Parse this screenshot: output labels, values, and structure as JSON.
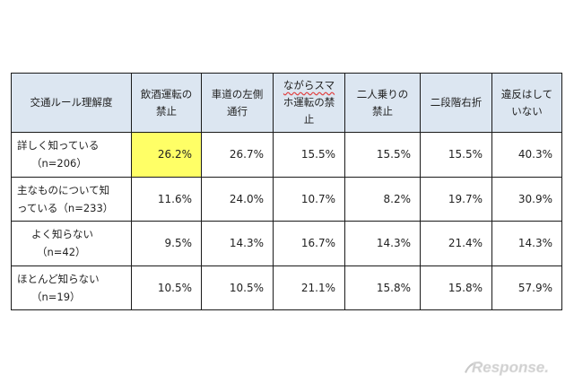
{
  "table": {
    "headers": [
      "交通ルール理解度",
      [
        "飲酒運転の",
        "禁止"
      ],
      [
        "車道の左側",
        "通行"
      ],
      [
        "ながらスマ",
        "ホ運転の禁",
        "止"
      ],
      [
        "二人乗りの",
        "禁止"
      ],
      "二段階右折",
      [
        "違反はして",
        "いない"
      ]
    ],
    "rows": [
      {
        "label": [
          "詳しく知っている",
          "（n=206）"
        ],
        "values": [
          "26.2%",
          "26.7%",
          "15.5%",
          "15.5%",
          "15.5%",
          "40.3%"
        ],
        "highlight_index": 0
      },
      {
        "label": [
          "主なものについて知",
          "っている（n=233）"
        ],
        "values": [
          "11.6%",
          "24.0%",
          "10.7%",
          "8.2%",
          "19.7%",
          "30.9%"
        ]
      },
      {
        "label": [
          "よく知らない",
          "（n=42）"
        ],
        "values": [
          "9.5%",
          "14.3%",
          "16.7%",
          "14.3%",
          "21.4%",
          "14.3%"
        ]
      },
      {
        "label": [
          "ほとんど知らない",
          "（n=19）"
        ],
        "values": [
          "10.5%",
          "10.5%",
          "21.1%",
          "15.8%",
          "15.8%",
          "57.9%"
        ]
      }
    ]
  },
  "colors": {
    "header_bg": "#dce6f1",
    "highlight": "#ffff66",
    "border": "#1a1a1a"
  },
  "logo": {
    "text": "Response."
  }
}
